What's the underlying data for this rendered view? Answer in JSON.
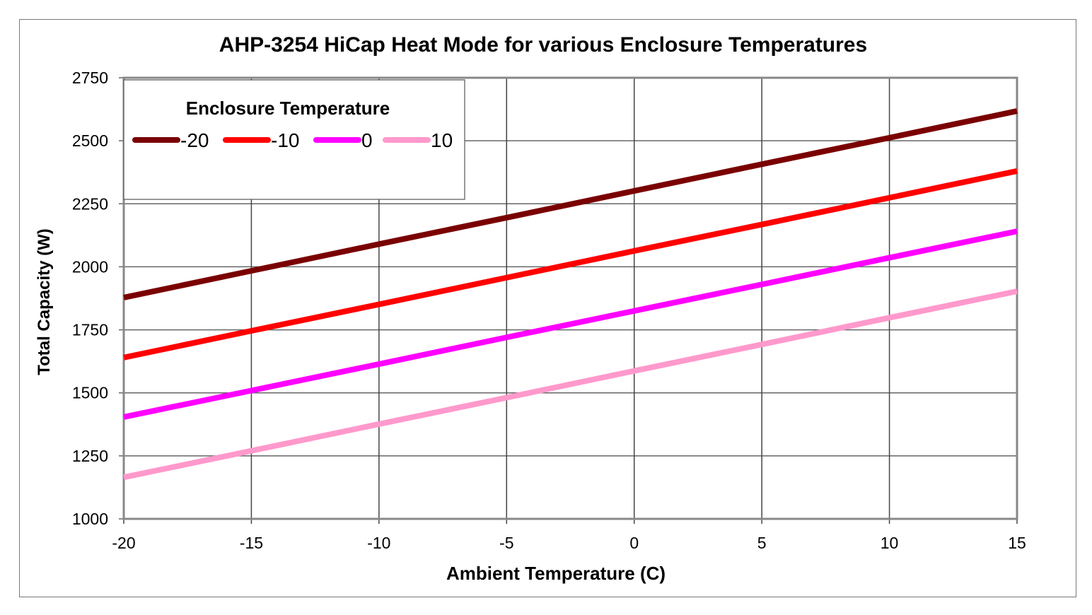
{
  "chart_data": {
    "type": "line",
    "title": "AHP-3254 HiCap Heat Mode for various Enclosure Temperatures",
    "xlabel": "Ambient Temperature (C)",
    "ylabel": "Total Capacity (W)",
    "xlim": [
      -20,
      15
    ],
    "ylim": [
      1000,
      2750
    ],
    "xticks": [
      -20,
      -15,
      -10,
      -5,
      0,
      5,
      10,
      15
    ],
    "yticks": [
      1000,
      1250,
      1500,
      1750,
      2000,
      2250,
      2500,
      2750
    ],
    "grid": true,
    "legend": {
      "title": "Enclosure Temperature",
      "placement": "top-left"
    },
    "x": [
      -20,
      -15,
      -10,
      -5,
      0,
      5,
      10,
      15
    ],
    "series": [
      {
        "name": "-20",
        "color": "#7a0000",
        "values": [
          1878,
          1984,
          2090,
          2195,
          2301,
          2407,
          2512,
          2618
        ]
      },
      {
        "name": "-10",
        "color": "#ff0000",
        "values": [
          1640,
          1746,
          1851,
          1957,
          2063,
          2168,
          2274,
          2380
        ]
      },
      {
        "name": "0",
        "color": "#ff00ff",
        "values": [
          1404,
          1509,
          1614,
          1720,
          1825,
          1930,
          2036,
          2141
        ]
      },
      {
        "name": "10",
        "color": "#ff99cc",
        "values": [
          1165,
          1270,
          1376,
          1481,
          1587,
          1692,
          1798,
          1903
        ]
      }
    ]
  }
}
